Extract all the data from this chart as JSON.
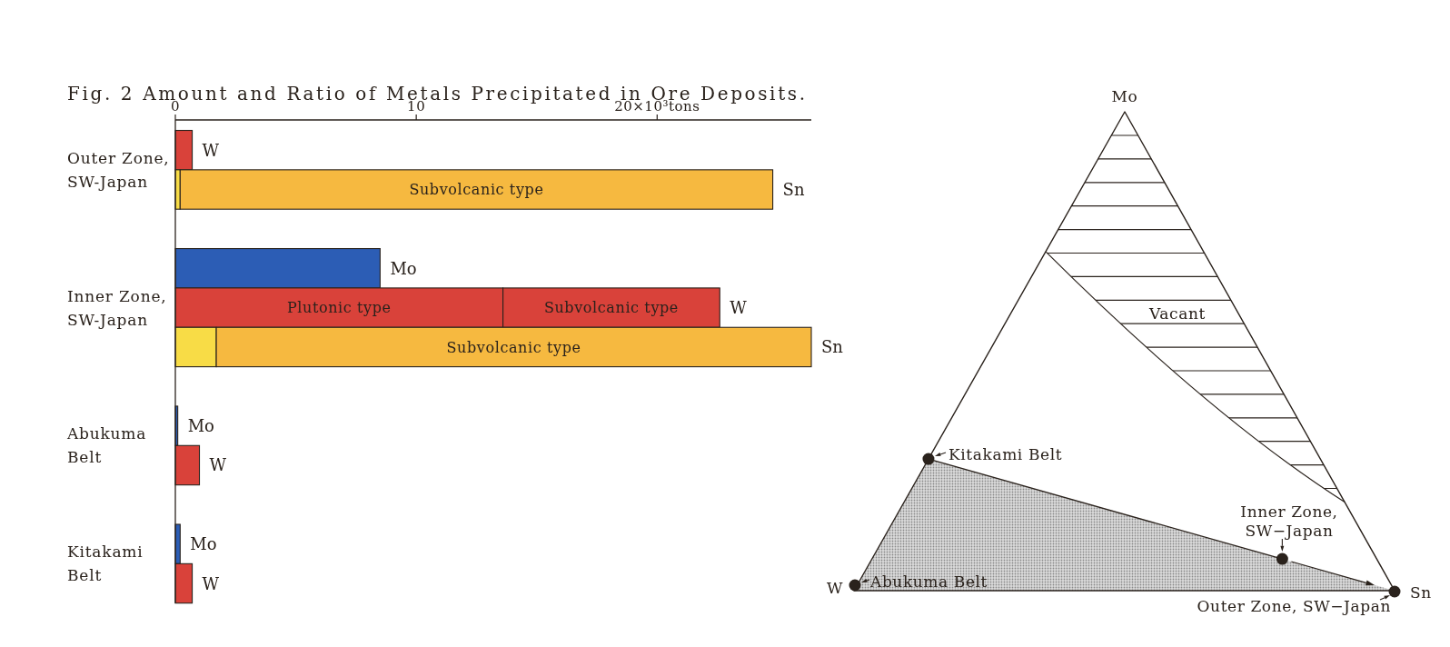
{
  "chart_data": [
    {
      "type": "bar",
      "orientation": "horizontal",
      "stacked": true,
      "title": "Fig. 2 Amount and Ratio of Metals Precipitated in Ore Deposits.",
      "categories": [
        null,
        null,
        null,
        null,
        null,
        null,
        null,
        null,
        null,
        null,
        null,
        null
      ],
      "xlim": [
        0,
        26.4
      ],
      "xticks": [
        0,
        10,
        {
          "value": 20,
          "label": "20×10³tons"
        }
      ],
      "annotations": [
        "Outer Zone,\nSW-Japan",
        "Inner Zone,\nSW-Japan",
        "Abukuma\nBelt",
        "Kitakami\nBelt"
      ],
      "series": [
        {
          "name": "Mo",
          "color": "#2c5db5",
          "values": [
            null,
            null,
            null,
            8.5,
            null,
            null,
            null,
            0.1,
            null,
            null,
            0.2,
            null
          ]
        },
        {
          "name": "W",
          "color": "#d9423a",
          "values": [
            0.7,
            null,
            null,
            null,
            13.6,
            null,
            null,
            null,
            1.0,
            null,
            null,
            0.7
          ],
          "value_labels": [
            null,
            null,
            null,
            null,
            "Plutonic type",
            null,
            null,
            null,
            null,
            null,
            null,
            null
          ]
        },
        {
          "color": "#d9423a",
          "values": [
            null,
            null,
            null,
            null,
            9.0,
            null,
            null,
            null,
            null,
            null,
            null,
            null
          ],
          "value_labels": [
            null,
            null,
            null,
            null,
            "Subvolcanic type",
            null,
            null,
            null,
            null,
            null,
            null,
            null
          ]
        },
        {
          "color": "#f8dc46",
          "values": [
            null,
            0.2,
            null,
            null,
            null,
            1.7,
            null,
            null,
            null,
            null,
            null,
            null
          ]
        },
        {
          "name": "Sn",
          "color": "#f6b940",
          "values": [
            null,
            24.6,
            null,
            null,
            null,
            24.7,
            null,
            null,
            null,
            null,
            null,
            null
          ],
          "value_labels": [
            null,
            "Subvolcanic type",
            null,
            null,
            null,
            "Subvolcanic type",
            null,
            null,
            null,
            null,
            null,
            null
          ]
        }
      ]
    },
    {
      "type": "other",
      "annotations": [
        "Mo",
        "W",
        "Sn",
        "Vacant",
        "Kitakami Belt",
        "Inner Zone,\nSW−Japan",
        "Abukuma Belt",
        "Outer Zone, SW−Japan"
      ]
    }
  ]
}
